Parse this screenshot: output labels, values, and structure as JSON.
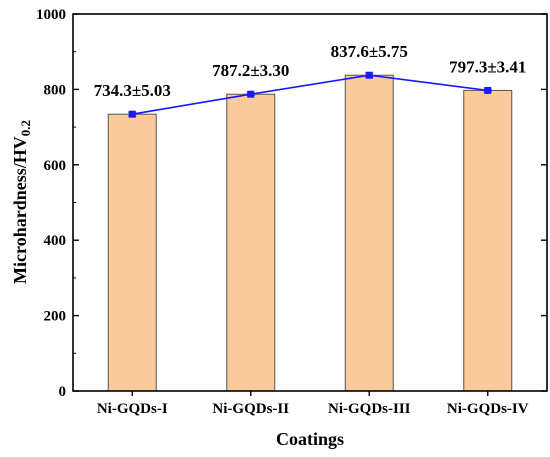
{
  "chart_data": {
    "type": "bar",
    "xlabel": "Coatings",
    "ylabel": "Microhardness/HV",
    "ylabel_subscript": "0.2",
    "categories": [
      "Ni-GQDs-I",
      "Ni-GQDs-II",
      "Ni-GQDs-III",
      "Ni-GQDs-IV"
    ],
    "values": [
      734.3,
      787.2,
      837.6,
      797.3
    ],
    "errors": [
      5.03,
      3.3,
      5.75,
      3.41
    ],
    "value_labels": [
      "734.3±5.03",
      "787.2±3.30",
      "837.6±5.75",
      "797.3±3.41"
    ],
    "ylim": [
      0,
      1000
    ],
    "yticks": [
      "0",
      "200",
      "400",
      "600",
      "800",
      "1000"
    ],
    "grid": false,
    "overlay_line": true,
    "colors": {
      "bar_fill": "#fbc99a",
      "bar_edge": "#555555",
      "line": "#1a1aff",
      "marker": "#1a1aff",
      "axis": "#000000"
    }
  }
}
